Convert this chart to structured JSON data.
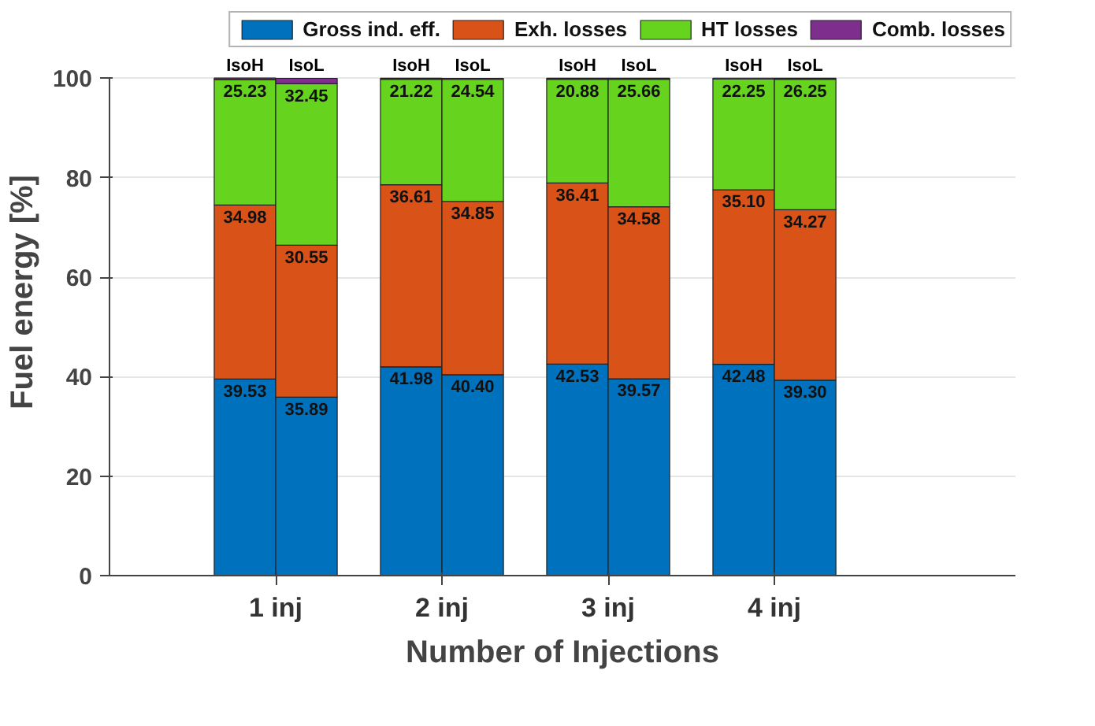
{
  "chart_data": {
    "type": "bar",
    "stacked": true,
    "xlabel": "Number of Injections",
    "ylabel": "Fuel energy [%]",
    "categories": [
      "IsoH",
      "IsoL",
      "IsoH",
      "IsoL",
      "IsoH",
      "IsoL",
      "IsoH",
      "IsoL"
    ],
    "annotations": [
      "1 inj",
      "2 inj",
      "3 inj",
      "4 inj"
    ],
    "ylim": [
      0,
      100
    ],
    "yticks": [
      0,
      20,
      40,
      60,
      80,
      100
    ],
    "grid": "y",
    "legend": "top",
    "series": [
      {
        "name": "Gross ind. eff.",
        "color": "#0072bd",
        "values": [
          39.53,
          35.89,
          41.98,
          40.4,
          42.53,
          39.57,
          42.48,
          39.3
        ],
        "value_labels": [
          "39.53",
          "35.89",
          "41.98",
          "40.40",
          "42.53",
          "39.57",
          "42.48",
          "39.30"
        ]
      },
      {
        "name": "Exh. losses",
        "color": "#d95319",
        "values": [
          34.98,
          30.55,
          36.61,
          34.85,
          36.41,
          34.58,
          35.1,
          34.27
        ],
        "value_labels": [
          "34.98",
          "30.55",
          "36.61",
          "34.85",
          "36.41",
          "34.58",
          "35.10",
          "34.27"
        ]
      },
      {
        "name": "HT losses",
        "color": "#66d41e",
        "values": [
          25.23,
          32.45,
          21.22,
          24.54,
          20.88,
          25.66,
          22.25,
          26.25
        ],
        "value_labels": [
          "25.23",
          "32.45",
          "21.22",
          "24.54",
          "20.88",
          "25.66",
          "22.25",
          "26.25"
        ]
      },
      {
        "name": "Comb. losses",
        "color": "#7e2f8e",
        "values": [
          0.3,
          1.1,
          0.2,
          0.2,
          0.2,
          0.2,
          0.2,
          0.2
        ]
      }
    ]
  }
}
